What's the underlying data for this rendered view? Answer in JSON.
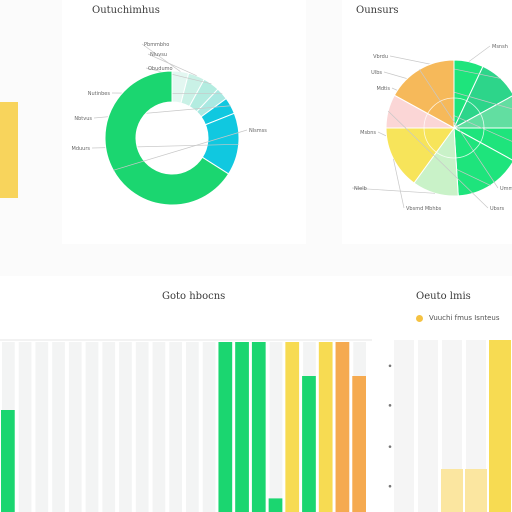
{
  "panels": {
    "donut_title": "Outuchimhus",
    "pie_title": "Ounsurs",
    "bars_title": "Goto hbocns",
    "right_title": "Oeuto lmis"
  },
  "legend": {
    "label": "Vuuchi fmus Isnteus",
    "color": "#f5c242"
  },
  "colors": {
    "green": "#1bd670",
    "cyan": "#10c8e0",
    "mint": "#b9efe0",
    "yellow": "#f7db52",
    "orange": "#f5aa50",
    "pink": "#fbd6d6",
    "light_green": "#c9f2c8",
    "grey_bar": "#eceeee"
  },
  "chart_data": [
    {
      "type": "pie",
      "variant": "donut",
      "slices": [
        {
          "label": "Pbmmbho",
          "value": 4
        },
        {
          "label": "Nluvsu",
          "value": 4
        },
        {
          "label": "Obudumo",
          "value": 4
        },
        {
          "label": "Nutinbes",
          "value": 3
        },
        {
          "label": "Nbtvus",
          "value": 4
        },
        {
          "label": "Mduurs",
          "value": 15
        },
        {
          "label": "Nlsmss",
          "value": 66
        }
      ],
      "slice_colors": [
        "#e3f7f1",
        "#c9f1e6",
        "#b3ece0",
        "#a9e9e2",
        "#10c8e0",
        "#10c8e0",
        "#1bd670"
      ]
    },
    {
      "type": "pie",
      "slices": [
        {
          "label": "Msnsh",
          "value": 7
        },
        {
          "label": "Vbrdu",
          "value": 10
        },
        {
          "label": "Ulbs",
          "value": 8
        },
        {
          "label": "Mdtis",
          "value": 8
        },
        {
          "label": "Msbns",
          "value": 16
        },
        {
          "label": "Nlelb",
          "value": 11
        },
        {
          "label": "Vbsmd Mbhbs",
          "value": 15
        },
        {
          "label": "Ubsrs",
          "value": 8
        },
        {
          "label": "Ummns",
          "value": 17
        }
      ],
      "slice_colors": [
        "#1ee47c",
        "#2dd58a",
        "#62dea1",
        "#1ee47c",
        "#1ee47c",
        "#c9f2c8",
        "#f7e45a",
        "#fbd6d6",
        "#f6b95a"
      ]
    },
    {
      "type": "bar",
      "ylim": [
        0,
        100
      ],
      "grid": true,
      "series": [
        {
          "color": "#1bd670",
          "values": [
            60,
            0,
            0,
            0,
            0,
            0,
            0,
            0,
            0,
            0,
            0,
            0,
            0,
            100,
            100,
            100,
            8,
            0,
            80,
            0,
            0,
            0
          ]
        },
        {
          "color": "#f7db52",
          "values": [
            0,
            0,
            0,
            0,
            0,
            0,
            0,
            0,
            0,
            0,
            0,
            0,
            0,
            0,
            0,
            0,
            0,
            100,
            0,
            100,
            0,
            0
          ]
        },
        {
          "color": "#f5aa50",
          "values": [
            0,
            0,
            0,
            0,
            0,
            0,
            0,
            0,
            0,
            0,
            0,
            0,
            0,
            0,
            0,
            0,
            0,
            0,
            0,
            0,
            100,
            80
          ]
        }
      ]
    },
    {
      "type": "bar",
      "ylim": [
        0,
        100
      ],
      "grid": true,
      "series": [
        {
          "color": "#f7db52",
          "values": [
            0,
            0,
            0,
            0,
            100
          ]
        },
        {
          "color": "#fbe6a0",
          "values": [
            0,
            0,
            25,
            25,
            0
          ]
        }
      ]
    }
  ]
}
